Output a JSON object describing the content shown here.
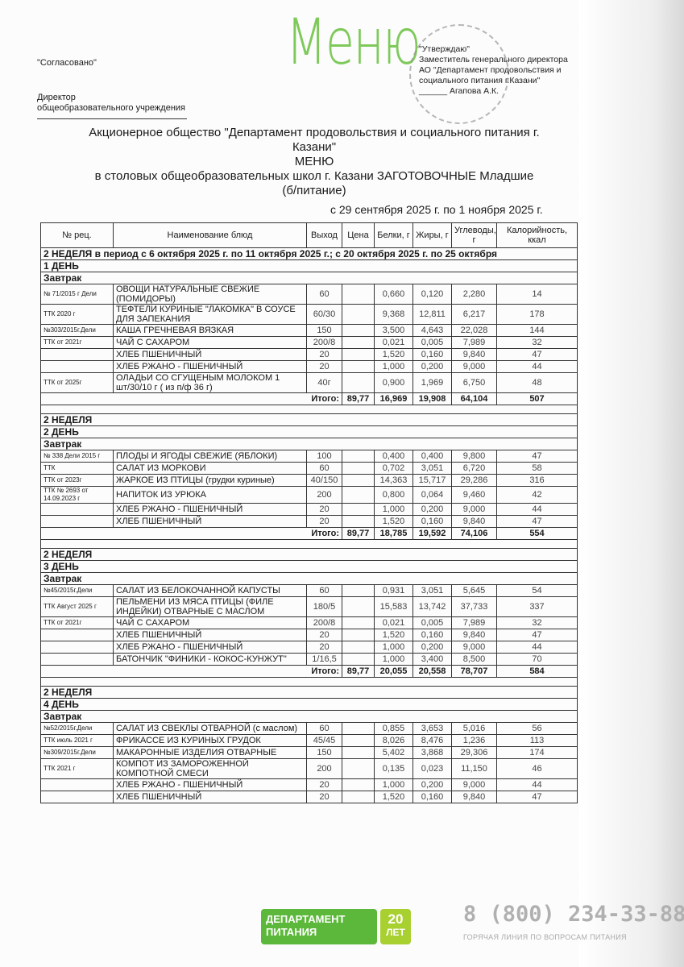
{
  "header": {
    "logo_text": "Меню",
    "agreed": "\"Согласовано\"",
    "director_line1": "Директор",
    "director_line2": "общеобразовательного учреждения",
    "approve_lines": [
      "\"Утверждаю\"",
      "Заместитель генерального директора",
      "АО \"Департамент продовольствия и",
      "социального питания г.Казани\"",
      "______ Агапова А.К."
    ],
    "title_line1": "Акционерное общество \"Департамент продовольствия и социального питания г.",
    "title_line2": "Казани\"",
    "title_line3": "МЕНЮ",
    "title_line4": "в столовых общеобразовательных школ г. Казани ЗАГОТОВОЧНЫЕ Младшие",
    "title_line5": "(б/питание)",
    "period": "с 29 сентября 2025 г. по 1 ноября 2025 г."
  },
  "table": {
    "columns": [
      "№ рец.",
      "Наименование блюд",
      "Выход",
      "Цена",
      "Белки, г",
      "Жиры, г",
      "Углеводы, г",
      "Калорийность, ккал"
    ],
    "total_label": "Итого:",
    "days": [
      {
        "week": "2 НЕДЕЛЯ в период  с 6 октября 2025 г. по 11 октября 2025 г.; с 20 октября 2025 г. по 25 октября",
        "day": "1 ДЕНЬ",
        "meal": "Завтрак",
        "rows": [
          [
            "№ 71/2015 г Дели",
            "ОВОЩИ НАТУРАЛЬНЫЕ СВЕЖИЕ (ПОМИДОРЫ)",
            "60",
            "",
            "0,660",
            "0,120",
            "2,280",
            "14"
          ],
          [
            "ТТК 2020 г",
            "ТЕФТЕЛИ КУРИНЫЕ \"ЛАКОМКА\" В СОУСЕ ДЛЯ ЗАПЕКАНИЯ",
            "60/30",
            "",
            "9,368",
            "12,811",
            "6,217",
            "178"
          ],
          [
            "№303/2015г.Дели",
            "КАША ГРЕЧНЕВАЯ ВЯЗКАЯ",
            "150",
            "",
            "3,500",
            "4,643",
            "22,028",
            "144"
          ],
          [
            "ТТК от 2021г",
            "ЧАЙ С САХАРОМ",
            "200/8",
            "",
            "0,021",
            "0,005",
            "7,989",
            "32"
          ],
          [
            "",
            "ХЛЕБ ПШЕНИЧНЫЙ",
            "20",
            "",
            "1,520",
            "0,160",
            "9,840",
            "47"
          ],
          [
            "",
            "ХЛЕБ РЖАНО - ПШЕНИЧНЫЙ",
            "20",
            "",
            "1,000",
            "0,200",
            "9,000",
            "44"
          ],
          [
            "ТТК от 2025г",
            "ОЛАДЬИ СО СГУЩЕНЫМ МОЛОКОМ 1 шт/30/10 г ( из п/ф 36 г)",
            "40г",
            "",
            "0,900",
            "1,969",
            "6,750",
            "48"
          ]
        ],
        "total": [
          "89,77",
          "16,969",
          "19,908",
          "64,104",
          "507"
        ]
      },
      {
        "week": "2 НЕДЕЛЯ",
        "day": "2 ДЕНЬ",
        "meal": "Завтрак",
        "rows": [
          [
            "№ 338 Дели 2015 г",
            "ПЛОДЫ И ЯГОДЫ СВЕЖИЕ (ЯБЛОКИ)",
            "100",
            "",
            "0,400",
            "0,400",
            "9,800",
            "47"
          ],
          [
            "ТТК",
            "САЛАТ ИЗ МОРКОВИ",
            "60",
            "",
            "0,702",
            "3,051",
            "6,720",
            "58"
          ],
          [
            "ТТК от 2023г",
            "ЖАРКОЕ ИЗ ПТИЦЫ (грудки куриные)",
            "40/150",
            "",
            "14,363",
            "15,717",
            "29,286",
            "316"
          ],
          [
            "ТТК № 2693 от 14.09.2023 г",
            "НАПИТОК ИЗ УРЮКА",
            "200",
            "",
            "0,800",
            "0,064",
            "9,460",
            "42"
          ],
          [
            "",
            "ХЛЕБ РЖАНО - ПШЕНИЧНЫЙ",
            "20",
            "",
            "1,000",
            "0,200",
            "9,000",
            "44"
          ],
          [
            "",
            "ХЛЕБ ПШЕНИЧНЫЙ",
            "20",
            "",
            "1,520",
            "0,160",
            "9,840",
            "47"
          ]
        ],
        "total": [
          "89,77",
          "18,785",
          "19,592",
          "74,106",
          "554"
        ]
      },
      {
        "week": "2 НЕДЕЛЯ",
        "day": "3 ДЕНЬ",
        "meal": "Завтрак",
        "rows": [
          [
            "№45/2015г.Дели",
            "САЛАТ ИЗ БЕЛОКОЧАННОЙ КАПУСТЫ",
            "60",
            "",
            "0,931",
            "3,051",
            "5,645",
            "54"
          ],
          [
            "ТТК Август 2025 г",
            "ПЕЛЬМЕНИ ИЗ МЯСА ПТИЦЫ (ФИЛЕ ИНДЕЙКИ)  ОТВАРНЫЕ С МАСЛОМ",
            "180/5",
            "",
            "15,583",
            "13,742",
            "37,733",
            "337"
          ],
          [
            "ТТК от 2021г",
            "ЧАЙ С САХАРОМ",
            "200/8",
            "",
            "0,021",
            "0,005",
            "7,989",
            "32"
          ],
          [
            "",
            "ХЛЕБ ПШЕНИЧНЫЙ",
            "20",
            "",
            "1,520",
            "0,160",
            "9,840",
            "47"
          ],
          [
            "",
            "ХЛЕБ РЖАНО - ПШЕНИЧНЫЙ",
            "20",
            "",
            "1,000",
            "0,200",
            "9,000",
            "44"
          ],
          [
            "",
            "БАТОНЧИК \"ФИНИКИ - КОКОС-КУНЖУТ\"",
            "1/16,5",
            "",
            "1,000",
            "3,400",
            "8,500",
            "70"
          ]
        ],
        "total": [
          "89,77",
          "20,055",
          "20,558",
          "78,707",
          "584"
        ]
      },
      {
        "week": "2 НЕДЕЛЯ",
        "day": "4 ДЕНЬ",
        "meal": "Завтрак",
        "rows": [
          [
            "№52/2015г.Дели",
            "САЛАТ ИЗ СВЕКЛЫ ОТВАРНОЙ (с маслом)",
            "60",
            "",
            "0,855",
            "3,653",
            "5,016",
            "56"
          ],
          [
            "ТТК июль 2021 г",
            "ФРИКАССЕ ИЗ КУРИНЫХ ГРУДОК",
            "45/45",
            "",
            "8,026",
            "8,476",
            "1,236",
            "113"
          ],
          [
            "№309/2015г.Дели",
            "МАКАРОННЫЕ ИЗДЕЛИЯ ОТВАРНЫЕ",
            "150",
            "",
            "5,402",
            "3,868",
            "29,306",
            "174"
          ],
          [
            "ТТК 2021 г",
            "КОМПОТ ИЗ ЗАМОРОЖЕННОЙ КОМПОТНОЙ СМЕСИ",
            "200",
            "",
            "0,135",
            "0,023",
            "11,150",
            "46"
          ],
          [
            "",
            "ХЛЕБ РЖАНО - ПШЕНИЧНЫЙ",
            "20",
            "",
            "1,000",
            "0,200",
            "9,000",
            "44"
          ],
          [
            "",
            "ХЛЕБ ПШЕНИЧНЫЙ",
            "20",
            "",
            "1,520",
            "0,160",
            "9,840",
            "47"
          ]
        ],
        "total": null
      }
    ]
  },
  "footer": {
    "logo_line1": "ДЕПАРТАМЕНТ",
    "logo_line2": "ПИТАНИЯ",
    "anniversary_number": "20",
    "anniversary_word": "ЛЕТ",
    "phone": "8 (800) 234-33-88",
    "hotline": "ГОРЯЧАЯ ЛИНИЯ ПО ВОПРОСАМ ПИТАНИЯ"
  },
  "colors": {
    "brand_green": "#5cb83a",
    "accent_lime": "#a8d030",
    "menu_logo": "#7ec95a"
  }
}
